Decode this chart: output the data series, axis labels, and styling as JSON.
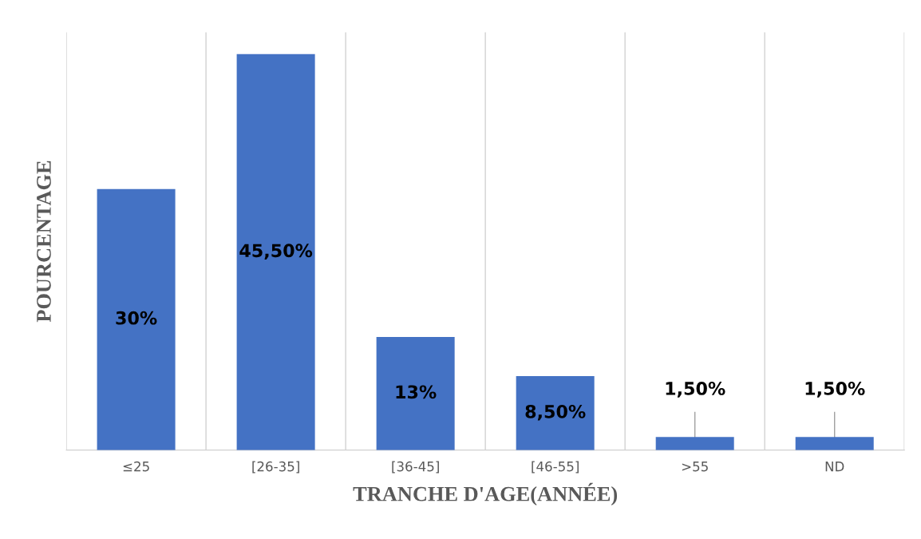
{
  "chart_data": {
    "type": "bar",
    "xlabel": "TRANCHE D'AGE(ANNÉE)",
    "ylabel": "POURCENTAGE",
    "categories": [
      "≤25",
      "[26-35]",
      "[36-45]",
      "[46-55]",
      ">55",
      "ND"
    ],
    "values": [
      30,
      45.5,
      13,
      8.5,
      1.5,
      1.5
    ],
    "value_labels": [
      "30%",
      "45,50%",
      "13%",
      "8,50%",
      "1,50%",
      "1,50%"
    ],
    "color": "#4472c4",
    "grid": "x"
  }
}
